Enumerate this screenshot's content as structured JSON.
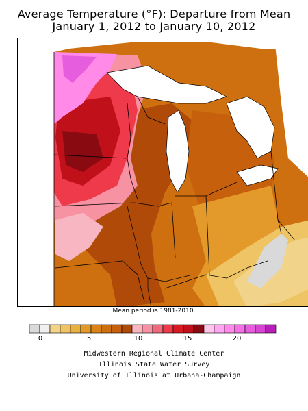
{
  "title": {
    "line1": "Average Temperature (°F): Departure from Mean",
    "line2": "January 1, 2012 to January 10, 2012"
  },
  "map": {
    "region": "Midwestern United States",
    "variable": "Average temperature departure from mean (°F)",
    "pattern": "Largest positive departures (18-22°F) in northwestern Minnesota; 13-17°F across central Minnesota, western Wisconsin and Iowa; 5-10°F across Illinois, Indiana, Michigan and Missouri; 1-4°F in southern Ohio and Kentucky; near 0 in eastern Kentucky."
  },
  "mean_note": "Mean period is 1981-2010.",
  "legend": {
    "colors": [
      "#d9d9d9",
      "#f0f0f0",
      "#f2d38a",
      "#efc465",
      "#e9b042",
      "#e39a2a",
      "#da8418",
      "#cf7010",
      "#c6600c",
      "#b04a08",
      "#f7b6c2",
      "#f792a2",
      "#f06a7e",
      "#ee3a4a",
      "#da1a22",
      "#c0101a",
      "#8a0a12",
      "#ffc6ea",
      "#ffa6f0",
      "#ff8ae8",
      "#f771e6",
      "#e65ddd",
      "#d646d2",
      "#b81fb8"
    ],
    "tick_labels": [
      "0",
      "5",
      "10",
      "15",
      "20"
    ]
  },
  "credits": [
    "Midwestern Regional Climate Center",
    "Illinois State Water Survey",
    "University of Illinois at Urbana-Champaign"
  ]
}
